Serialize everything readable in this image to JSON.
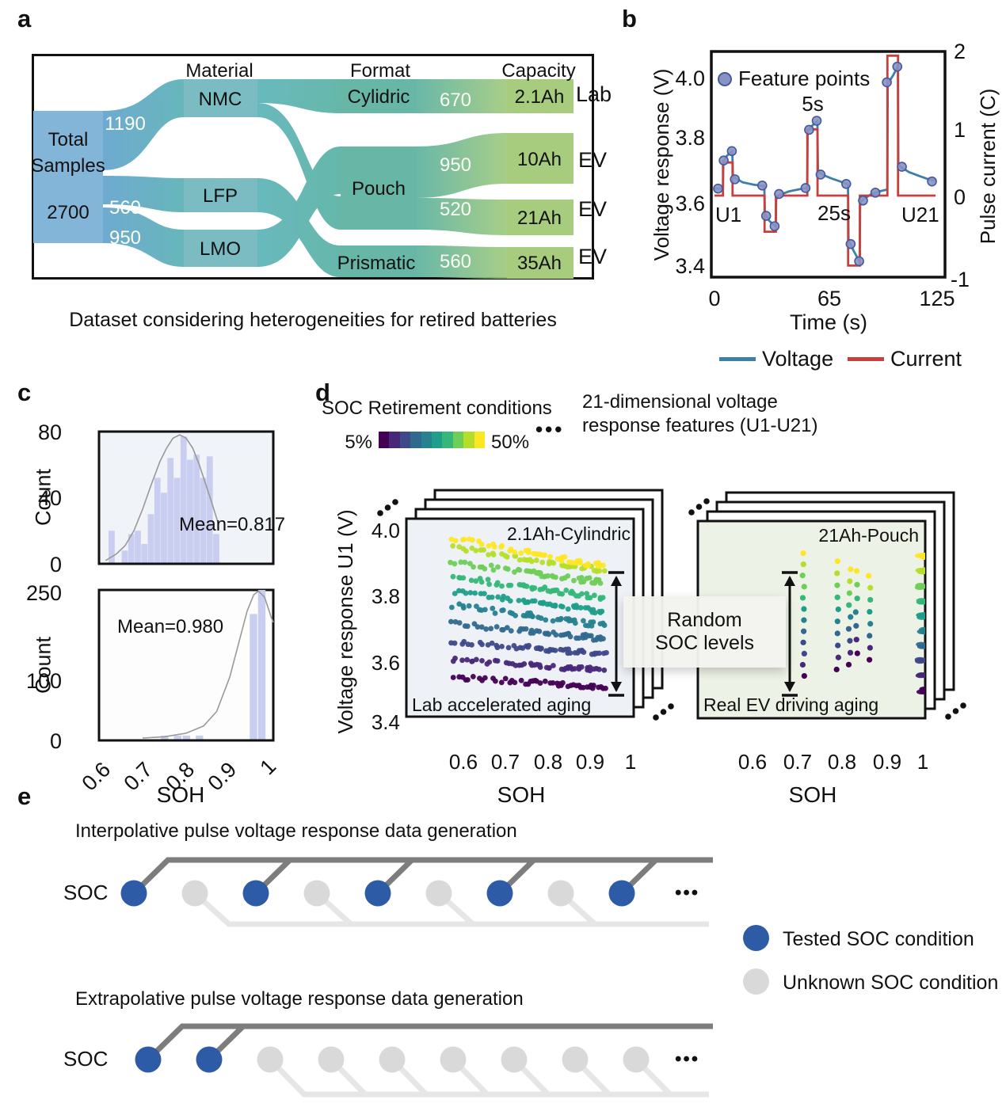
{
  "panel_a": {
    "letter": "a",
    "caption": "Dataset considering heterogeneities for retired batteries",
    "headers": {
      "material": "Material",
      "format": "Format",
      "capacity": "Capacity"
    },
    "source": {
      "line1": "Total",
      "line2": "Samples",
      "value": "2700"
    },
    "flows_left": {
      "nmc": "1190",
      "lfp": "560",
      "lmo": "950"
    },
    "materials": {
      "nmc": "NMC",
      "lfp": "LFP",
      "lmo": "LMO"
    },
    "formats": {
      "cylidric": "Cylidric",
      "pouch": "Pouch",
      "prismatic": "Prismatic"
    },
    "flows_right": {
      "f670": "670",
      "f950": "950",
      "f520": "520",
      "f560": "560"
    },
    "capacities": {
      "c1": "2.1Ah",
      "c2": "10Ah",
      "c3": "21Ah",
      "c4": "35Ah"
    },
    "destinations": {
      "d1": "Lab",
      "d2": "EV",
      "d3": "EV",
      "d4": "EV"
    }
  },
  "panel_b": {
    "letter": "b",
    "feature_legend": "Feature points",
    "ann_5s": "5s",
    "ann_25s": "25s",
    "ann_u1": "U1",
    "ann_u21": "U21",
    "legend_voltage": "Voltage",
    "legend_current": "Current"
  },
  "panel_c": {
    "letter": "c",
    "count_label_top": "Count",
    "count_label_bottom": "Count",
    "xlabel": "SOH"
  },
  "panel_d": {
    "letter": "d",
    "colorbar_label": "SOC Retirement conditions",
    "pct_min": "5%",
    "pct_max": "50%",
    "dots": "•••",
    "right_header_line1": "21-dimensional voltage",
    "right_header_line2": "response features (U1-U21)",
    "random_line1": "Random",
    "random_line2": "SOC levels",
    "ylabel": "Voltage response U1 (V)",
    "xlabel_left": "SOH",
    "xlabel_right": "SOH"
  },
  "panel_e": {
    "letter": "e",
    "title_top": "Interpolative pulse voltage response data generation",
    "title_bottom": "Extrapolative pulse voltage response data generation",
    "soc_label_top": "SOC",
    "soc_label_bottom": "SOC",
    "dots_top": "•••",
    "dots_bottom": "•••",
    "legend_tested": "Tested SOC condition",
    "legend_unknown": "Unknown SOC condition",
    "row_top_pattern": [
      "T",
      "U",
      "T",
      "U",
      "T",
      "U",
      "T",
      "U",
      "T"
    ],
    "row_bottom_pattern": [
      "T",
      "T",
      "U",
      "U",
      "U",
      "U",
      "U",
      "U",
      "U"
    ]
  },
  "colors": {
    "voltage": "#3c7fa8",
    "current": "#c8403c",
    "feature_fill": "#8794c3",
    "feature_edge": "#45589c",
    "hist_bar": "#c9cdf0",
    "kde": "#999999",
    "tested_blue": "#2d5ba6",
    "unknown_grey": "#d9d9d9",
    "dark_bar": "#7d7d7d",
    "light_bar": "#e6e6e6",
    "scatter_bg_left": "#eef2f7",
    "scatter_bg_right": "#edf2e6"
  },
  "chart_data": [
    {
      "type": "line",
      "xlabel": "Time (s)",
      "ylabel": "Voltage response (V)",
      "ylabel2": "Pulse current (C)",
      "xticks": [
        "0",
        "65",
        "125"
      ],
      "yticks": [
        "4.0",
        "3.8",
        "3.6",
        "3.4"
      ],
      "yticks2": [
        "2",
        "1",
        "0",
        "-1"
      ],
      "xlim": [
        0,
        125
      ],
      "ylim_left": [
        3.35,
        4.08
      ],
      "ylim_right": [
        -1,
        2
      ],
      "series": [
        {
          "name": "Voltage",
          "axis": "left",
          "points": [
            [
              0,
              3.645
            ],
            [
              4.8,
              3.645
            ],
            [
              5.0,
              3.732
            ],
            [
              7,
              3.75
            ],
            [
              10.1,
              3.765
            ],
            [
              10.4,
              3.69
            ],
            [
              12,
              3.678
            ],
            [
              16,
              3.665
            ],
            [
              22,
              3.658
            ],
            [
              28.2,
              3.653
            ],
            [
              28.5,
              3.565
            ],
            [
              31,
              3.542
            ],
            [
              34.6,
              3.523
            ],
            [
              34.9,
              3.612
            ],
            [
              37,
              3.625
            ],
            [
              42,
              3.636
            ],
            [
              48,
              3.643
            ],
            [
              52.4,
              3.647
            ],
            [
              52.7,
              3.83
            ],
            [
              55,
              3.845
            ],
            [
              58.2,
              3.862
            ],
            [
              58.5,
              3.7
            ],
            [
              61,
              3.69
            ],
            [
              66,
              3.678
            ],
            [
              71,
              3.668
            ],
            [
              75.5,
              3.659
            ],
            [
              75.8,
              3.48
            ],
            [
              79,
              3.443
            ],
            [
              82.1,
              3.412
            ],
            [
              82.4,
              3.6
            ],
            [
              84,
              3.61
            ],
            [
              88,
              3.625
            ],
            [
              93,
              3.636
            ],
            [
              97.7,
              3.642
            ],
            [
              98.0,
              3.98
            ],
            [
              101,
              4.007
            ],
            [
              103.7,
              4.035
            ],
            [
              104.0,
              3.722
            ],
            [
              106,
              3.712
            ],
            [
              110,
              3.698
            ],
            [
              115,
              3.687
            ],
            [
              120,
              3.677
            ],
            [
              125,
              3.67
            ]
          ]
        },
        {
          "name": "Current",
          "axis": "right",
          "points": [
            [
              0,
              0
            ],
            [
              4.8,
              0
            ],
            [
              4.8,
              0.45
            ],
            [
              10.2,
              0.45
            ],
            [
              10.2,
              0
            ],
            [
              28.3,
              0
            ],
            [
              28.3,
              -0.49
            ],
            [
              34.7,
              -0.49
            ],
            [
              34.7,
              0
            ],
            [
              52.5,
              0
            ],
            [
              52.5,
              0.9
            ],
            [
              58.3,
              0.9
            ],
            [
              58.3,
              0
            ],
            [
              75.6,
              0
            ],
            [
              75.6,
              -0.95
            ],
            [
              82.2,
              -0.95
            ],
            [
              82.2,
              0
            ],
            [
              97.8,
              0
            ],
            [
              97.8,
              1.9
            ],
            [
              103.8,
              1.9
            ],
            [
              103.8,
              0
            ],
            [
              125,
              0
            ]
          ]
        }
      ],
      "feature_points": [
        [
          2,
          3.645
        ],
        [
          5.2,
          3.735
        ],
        [
          9.8,
          3.765
        ],
        [
          11.5,
          3.675
        ],
        [
          27,
          3.655
        ],
        [
          29.2,
          3.558
        ],
        [
          34,
          3.525
        ],
        [
          36.5,
          3.628
        ],
        [
          51.5,
          3.647
        ],
        [
          53.5,
          3.833
        ],
        [
          57.8,
          3.862
        ],
        [
          60,
          3.69
        ],
        [
          74.5,
          3.66
        ],
        [
          77,
          3.468
        ],
        [
          81.8,
          3.413
        ],
        [
          84,
          3.607
        ],
        [
          91,
          3.632
        ],
        [
          97.5,
          3.985
        ],
        [
          103.4,
          4.035
        ],
        [
          106,
          3.715
        ],
        [
          123,
          3.668
        ]
      ]
    },
    {
      "type": "bar",
      "ylabel": "Count",
      "yticks": [
        "80",
        "40",
        "0"
      ],
      "ylim": [
        0,
        80
      ],
      "mean_label": "Mean=0.817",
      "bin_width": 0.015,
      "bars": [
        [
          0.622,
          20
        ],
        [
          0.652,
          8
        ],
        [
          0.667,
          18
        ],
        [
          0.682,
          20
        ],
        [
          0.697,
          12
        ],
        [
          0.712,
          30
        ],
        [
          0.727,
          52
        ],
        [
          0.742,
          43
        ],
        [
          0.757,
          64
        ],
        [
          0.772,
          52
        ],
        [
          0.787,
          77
        ],
        [
          0.802,
          63
        ],
        [
          0.817,
          66
        ],
        [
          0.832,
          52
        ],
        [
          0.847,
          65
        ],
        [
          0.862,
          18
        ]
      ],
      "curve": [
        [
          0.615,
          2
        ],
        [
          0.64,
          6
        ],
        [
          0.66,
          11
        ],
        [
          0.68,
          20
        ],
        [
          0.7,
          33
        ],
        [
          0.72,
          48
        ],
        [
          0.74,
          62
        ],
        [
          0.755,
          70
        ],
        [
          0.77,
          76
        ],
        [
          0.785,
          78
        ],
        [
          0.8,
          76
        ],
        [
          0.815,
          70
        ],
        [
          0.83,
          60
        ],
        [
          0.845,
          48
        ],
        [
          0.86,
          36
        ],
        [
          0.873,
          25
        ]
      ]
    },
    {
      "type": "bar",
      "ylabel": "Count",
      "yticks": [
        "250",
        "100",
        "0"
      ],
      "ylim": [
        0,
        260
      ],
      "xticks": [
        "0.6",
        "0.7",
        "0.8",
        "0.9",
        "1"
      ],
      "xlabel": "SOH",
      "xlim": [
        0.6,
        1.0
      ],
      "mean_label": "Mean=0.980",
      "bin_width": 0.018,
      "bars": [
        [
          0.742,
          8
        ],
        [
          0.772,
          8
        ],
        [
          0.792,
          8
        ],
        [
          0.822,
          8
        ],
        [
          0.946,
          210
        ],
        [
          0.965,
          250
        ]
      ],
      "curve": [
        [
          0.7,
          4
        ],
        [
          0.75,
          6
        ],
        [
          0.8,
          12
        ],
        [
          0.84,
          24
        ],
        [
          0.87,
          48
        ],
        [
          0.9,
          105
        ],
        [
          0.92,
          160
        ],
        [
          0.94,
          215
        ],
        [
          0.955,
          242
        ],
        [
          0.966,
          248
        ],
        [
          0.98,
          238
        ],
        [
          0.995,
          205
        ],
        [
          1.0,
          196
        ]
      ]
    },
    {
      "type": "scatter",
      "title": "2.1Ah-Cylindric",
      "note": "Lab accelerated aging",
      "xlabel": "SOH",
      "ylabel": "Voltage response U1 (V)",
      "xticks": [
        "0.6",
        "0.7",
        "0.8",
        "0.9",
        "1"
      ],
      "yticks": [
        "4.0",
        "3.8",
        "3.6",
        "3.4"
      ],
      "xlim": [
        0.465,
        1.0
      ],
      "ylim": [
        3.4,
        4.0
      ],
      "soh_range": [
        0.575,
        0.93
      ],
      "points_per_row": 36,
      "rows": [
        {
          "soc": "5%",
          "color": "#440154",
          "v_start": 3.545,
          "v_end": 3.517
        },
        {
          "soc": "10%",
          "color": "#482878",
          "v_start": 3.601,
          "v_end": 3.567
        },
        {
          "soc": "15%",
          "color": "#3e4989",
          "v_start": 3.657,
          "v_end": 3.617
        },
        {
          "soc": "20%",
          "color": "#31688e",
          "v_start": 3.712,
          "v_end": 3.665
        },
        {
          "soc": "25%",
          "color": "#26828e",
          "v_start": 3.768,
          "v_end": 3.706
        },
        {
          "soc": "30%",
          "color": "#1f9e89",
          "v_start": 3.812,
          "v_end": 3.748
        },
        {
          "soc": "35%",
          "color": "#35b779",
          "v_start": 3.857,
          "v_end": 3.792
        },
        {
          "soc": "40%",
          "color": "#6ece58",
          "v_start": 3.902,
          "v_end": 3.838
        },
        {
          "soc": "45%",
          "color": "#b5de2b",
          "v_start": 3.947,
          "v_end": 3.878
        },
        {
          "soc": "50%",
          "color": "#fde725",
          "v_start": 3.977,
          "v end": 3.888,
          "v_end": 3.888
        }
      ]
    },
    {
      "type": "scatter",
      "title": "21Ah-Pouch",
      "note": "Real EV driving aging",
      "xlabel": "SOH",
      "xticks": [
        "0.6",
        "0.7",
        "0.8",
        "0.9",
        "1"
      ],
      "xlim": [
        0.465,
        1.0
      ],
      "ylim": [
        3.4,
        4.0
      ],
      "columns": [
        {
          "soh": 0.72,
          "n": 12,
          "v_top": 3.93,
          "v_bottom": 3.55
        },
        {
          "soh": 0.8,
          "n": 10,
          "v_top": 3.905,
          "v_bottom": 3.57
        },
        {
          "soh": 0.828,
          "n": 9,
          "v_top": 3.88,
          "v_bottom": 3.585
        },
        {
          "soh": 0.845,
          "n": 7,
          "v_top": 3.875,
          "v_bottom": 3.62
        },
        {
          "soh": 0.875,
          "n": 8,
          "v_top": 3.86,
          "v_bottom": 3.6
        }
      ],
      "cluster": {
        "soh": 1.0,
        "n": 10,
        "v_top": 3.92,
        "v_bottom": 3.505
      }
    }
  ],
  "colorbar": {
    "colors": [
      "#440154",
      "#482878",
      "#3e4989",
      "#31688e",
      "#26828e",
      "#1f9e89",
      "#35b779",
      "#6ece58",
      "#b5de2b",
      "#fde725"
    ]
  }
}
